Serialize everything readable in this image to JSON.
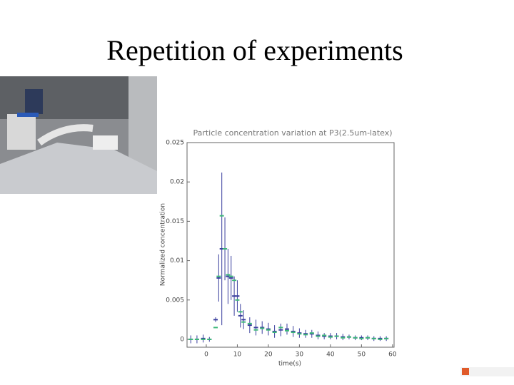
{
  "slide_title": "Repetition of experiments",
  "chart_data": {
    "type": "errorbar",
    "title": "Particle concentration variation at P3(2.5um-latex)",
    "x_label": "time(s)",
    "y_label": "Normalized concentration",
    "x": [
      -5,
      -3,
      -1,
      1,
      3,
      4,
      5,
      6,
      7,
      8,
      9,
      10,
      11,
      12,
      14,
      16,
      18,
      20,
      22,
      24,
      26,
      28,
      30,
      32,
      34,
      36,
      38,
      40,
      42,
      44,
      46,
      48,
      50,
      52,
      54,
      56,
      58
    ],
    "series": [
      {
        "color": "#3a3f9e",
        "values": [
          0,
          0,
          0.0001,
          0,
          0.0025,
          0.0078,
          0.0115,
          0.0115,
          0.008,
          0.0078,
          0.0055,
          0.0055,
          0.003,
          0.0025,
          0.0018,
          0.0015,
          0.0015,
          0.0013,
          0.001,
          0.0012,
          0.0013,
          0.001,
          0.0008,
          0.0007,
          0.0007,
          0.0005,
          0.0004,
          0.0004,
          0.0004,
          0.0003,
          0.0003,
          0.0002,
          0.0002,
          0.0002,
          0.0001,
          0.0001,
          0.0001
        ],
        "errors": [
          0.0005,
          0.0005,
          0.0005,
          0.0003,
          0.0003,
          0.003,
          0.0097,
          0.004,
          0.0035,
          0.0028,
          0.0025,
          0.002,
          0.0015,
          0.0012,
          0.001,
          0.001,
          0.0008,
          0.0008,
          0.0008,
          0.0008,
          0.0007,
          0.0007,
          0.0006,
          0.0005,
          0.0005,
          0.0005,
          0.0004,
          0.0004,
          0.0004,
          0.0004,
          0.0003,
          0.0003,
          0.0003,
          0.0003,
          0.0003,
          0.0003,
          0.0003
        ]
      },
      {
        "color": "#3cb878",
        "values": [
          0,
          0,
          0,
          0,
          0.0015,
          0.008,
          0.0157,
          0.0115,
          0.0082,
          0.008,
          0.0075,
          0.005,
          0.0035,
          0.0022,
          0.002,
          0.0012,
          0.0014,
          0.0012,
          0.0009,
          0.0015,
          0.0011,
          0.0009,
          0.0007,
          0.0006,
          0.0008,
          0.0004,
          0.0005,
          0.0003,
          0.0004,
          0.0002,
          0.0003,
          0.0002,
          0.0001,
          0.0002,
          0.0001,
          0,
          0.0001
        ]
      }
    ],
    "xlim": [
      -6.2,
      60.5
    ],
    "ylim": [
      -0.001,
      0.025
    ],
    "xticks": [
      0,
      10,
      20,
      30,
      40,
      50,
      60
    ],
    "yticks": [
      0,
      0.005,
      0.01,
      0.015,
      0.02,
      0.025
    ]
  }
}
